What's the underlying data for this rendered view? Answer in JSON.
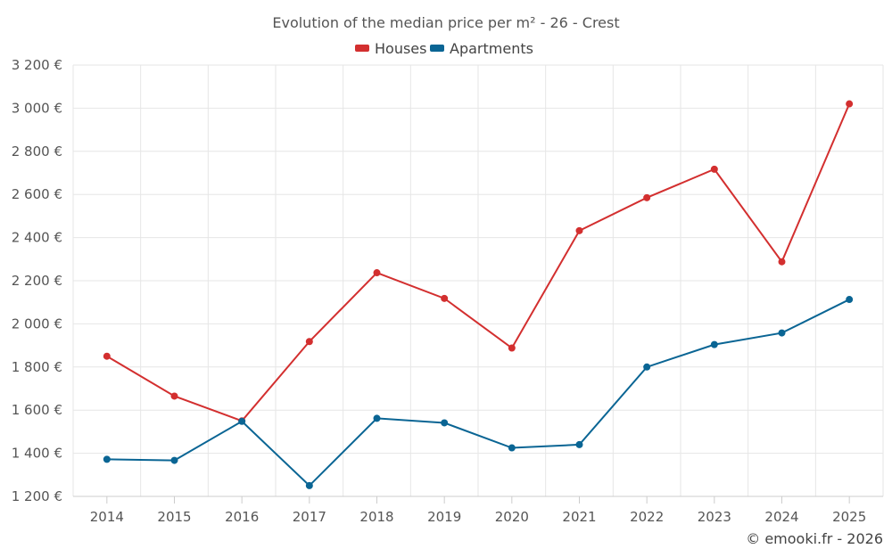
{
  "chart_data": {
    "type": "line",
    "title": "Evolution of the median price per m² - 26 - Crest",
    "categories": [
      "2014",
      "2015",
      "2016",
      "2017",
      "2018",
      "2019",
      "2020",
      "2021",
      "2022",
      "2023",
      "2024",
      "2025"
    ],
    "series": [
      {
        "name": "Houses",
        "color": "#d32f2f",
        "values": [
          1850,
          1665,
          1550,
          1918,
          2237,
          2118,
          1888,
          2432,
          2585,
          2717,
          2288,
          3020
        ]
      },
      {
        "name": "Apartments",
        "color": "#0a6594",
        "values": [
          1372,
          1367,
          1548,
          1250,
          1562,
          1541,
          1425,
          1440,
          1800,
          1904,
          1958,
          2113
        ]
      }
    ],
    "ylim": [
      1200,
      3200
    ],
    "yticks": [
      1200,
      1400,
      1600,
      1800,
      2000,
      2200,
      2400,
      2600,
      2800,
      3000,
      3200
    ],
    "ytick_labels": [
      "1 200 €",
      "1 400 €",
      "1 600 €",
      "1 800 €",
      "2 000 €",
      "2 200 €",
      "2 400 €",
      "2 600 €",
      "2 800 €",
      "3 000 €",
      "3 200 €"
    ],
    "grid": true,
    "legend_position": "top-center"
  },
  "credit": "© emooki.fr - 2026"
}
